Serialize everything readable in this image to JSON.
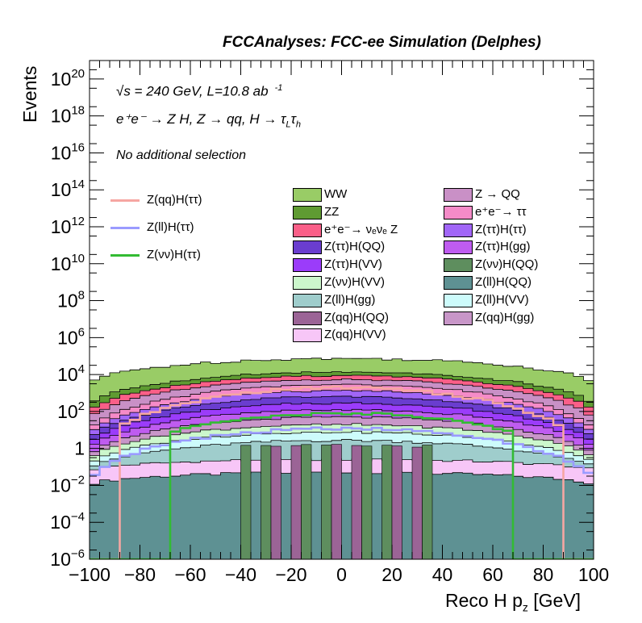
{
  "header": {
    "title": "FCCAnalyses: FCC-ee Simulation (Delphes)"
  },
  "annotations": {
    "energy": "√s = 240 GeV, L=10.8 ab",
    "lumi_exp": "-1",
    "process": "e⁺e⁻ → Z H, Z → qq, H → τ",
    "process_sub1": "L",
    "process_tau2": "τ",
    "process_sub2": "h",
    "selection": "No additional selection"
  },
  "chart_data": {
    "type": "area",
    "title": "FCCAnalyses: FCC-ee Simulation (Delphes)",
    "xlabel": "Reco H p_z [GeV]",
    "ylabel": "Events",
    "xlim": [
      -100,
      100
    ],
    "ylim": [
      1e-06,
      1e+21
    ],
    "log_y": true,
    "bin_width": 4,
    "x_ticks": [
      -100,
      -80,
      -60,
      -40,
      -20,
      0,
      20,
      40,
      60,
      80,
      100
    ],
    "x_tick_labels": [
      "−100",
      "−80",
      "−60",
      "−40",
      "−20",
      "0",
      "20",
      "40",
      "60",
      "80",
      "100"
    ],
    "y_ticks": [
      1e-06,
      0.0001,
      0.01,
      1,
      100,
      10000.0,
      1000000.0,
      100000000.0,
      10000000000.0,
      1000000000000.0,
      100000000000000.0,
      1e+16,
      1e+18,
      1e+20
    ],
    "y_tick_labels": [
      "10^-6",
      "10^-4",
      "10^-2",
      "1",
      "10^2",
      "10^4",
      "10^6",
      "10^8",
      "10^10",
      "10^12",
      "10^14",
      "10^16",
      "10^18",
      "10^20"
    ],
    "stack_layers_approx": [
      {
        "name": "Z(ll)H(QQ)",
        "color": "#5e9193",
        "peak": 0.05,
        "floor": 0.01
      },
      {
        "name": "Z(qq)H(VV)",
        "color": "#f7c6f7",
        "peak": 0.2,
        "floor": 0.05
      },
      {
        "name": "Z(ll)H(gg)",
        "color": "#9fcdcc",
        "peak": 2.5,
        "floor": 0.02
      },
      {
        "name": "Z(ll)H(VV)",
        "color": "#cdfbfb",
        "peak": 5,
        "floor": 0.04
      },
      {
        "name": "Z(νν)H(VV)",
        "color": "#ccf7cc",
        "peak": 12,
        "floor": 0.08
      },
      {
        "name": "Z(qq)H(gg)",
        "color": "#c896c8",
        "peak": 30,
        "floor": 0.1
      },
      {
        "name": "Z(ττ)H(gg)",
        "color": "#bf5cf0",
        "peak": 70,
        "floor": 0.3
      },
      {
        "name": "Z(ττ)H(VV)",
        "color": "#9b3cfa",
        "peak": 160,
        "floor": 0.5
      },
      {
        "name": "Z(ττ)H(QQ)",
        "color": "#6a3dcf",
        "peak": 350,
        "floor": 0.8
      },
      {
        "name": "Z(ττ)H(ττ)",
        "color": "#a166f7",
        "peak": 700,
        "floor": 1.2
      },
      {
        "name": "e⁺e⁻→ ττ",
        "color": "#f58bc8",
        "peak": 1500,
        "floor": 2
      },
      {
        "name": "Z → QQ",
        "color": "#c990c6",
        "peak": 2500,
        "floor": 20
      },
      {
        "name": "e⁺e⁻→ νₑνₑ Z",
        "color": "#fa5f88",
        "peak": 3500,
        "floor": 40
      },
      {
        "name": "ZZ",
        "color": "#5f9b32",
        "peak": 5000,
        "floor": 100
      },
      {
        "name": "WW",
        "color": "#99cc66",
        "peak": 60000,
        "floor": 2500
      }
    ],
    "signal_lines": [
      {
        "name": "Z(qq)H(ττ)",
        "color": "#f6a6a2",
        "peak": 2000,
        "cut": 88
      },
      {
        "name": "Z(ll)H(ττ)",
        "color": "#9a9bff",
        "peak": 12,
        "cut": 100
      },
      {
        "name": "Z(νν)H(ττ)",
        "color": "#33bb33",
        "peak": 80,
        "cut": 68
      }
    ]
  },
  "legend": {
    "lines": [
      {
        "label": "Z(qq)H(ττ)",
        "color": "#f6a6a2"
      },
      {
        "label": "Z(ll)H(ττ)",
        "color": "#9a9bff"
      },
      {
        "label": "Z(νν)H(ττ)",
        "color": "#33bb33"
      }
    ],
    "col1": [
      {
        "label": "WW",
        "color": "#99cc66"
      },
      {
        "label": "ZZ",
        "color": "#5f9b32"
      },
      {
        "label": "e⁺e⁻→ νₑνₑ Z",
        "color": "#fa5f88"
      },
      {
        "label": "Z(ττ)H(QQ)",
        "color": "#6a3dcf"
      },
      {
        "label": "Z(ττ)H(VV)",
        "color": "#9b3cfa"
      },
      {
        "label": "Z(νν)H(VV)",
        "color": "#ccf7cc"
      },
      {
        "label": "Z(ll)H(gg)",
        "color": "#9fcdcc"
      },
      {
        "label": "Z(qq)H(QQ)",
        "color": "#9b6496"
      },
      {
        "label": "Z(qq)H(VV)",
        "color": "#f7c6f7"
      }
    ],
    "col2": [
      {
        "label": "Z → QQ",
        "color": "#c990c6"
      },
      {
        "label": "e⁺e⁻→ ττ",
        "color": "#f58bc8"
      },
      {
        "label": "Z(ττ)H(ττ)",
        "color": "#a166f7"
      },
      {
        "label": "Z(ττ)H(gg)",
        "color": "#bf5cf0"
      },
      {
        "label": "Z(νν)H(QQ)",
        "color": "#5e8e5e"
      },
      {
        "label": "Z(ll)H(QQ)",
        "color": "#5e9193"
      },
      {
        "label": "Z(ll)H(VV)",
        "color": "#cdfbfb"
      },
      {
        "label": "Z(qq)H(gg)",
        "color": "#c896c8"
      }
    ]
  }
}
